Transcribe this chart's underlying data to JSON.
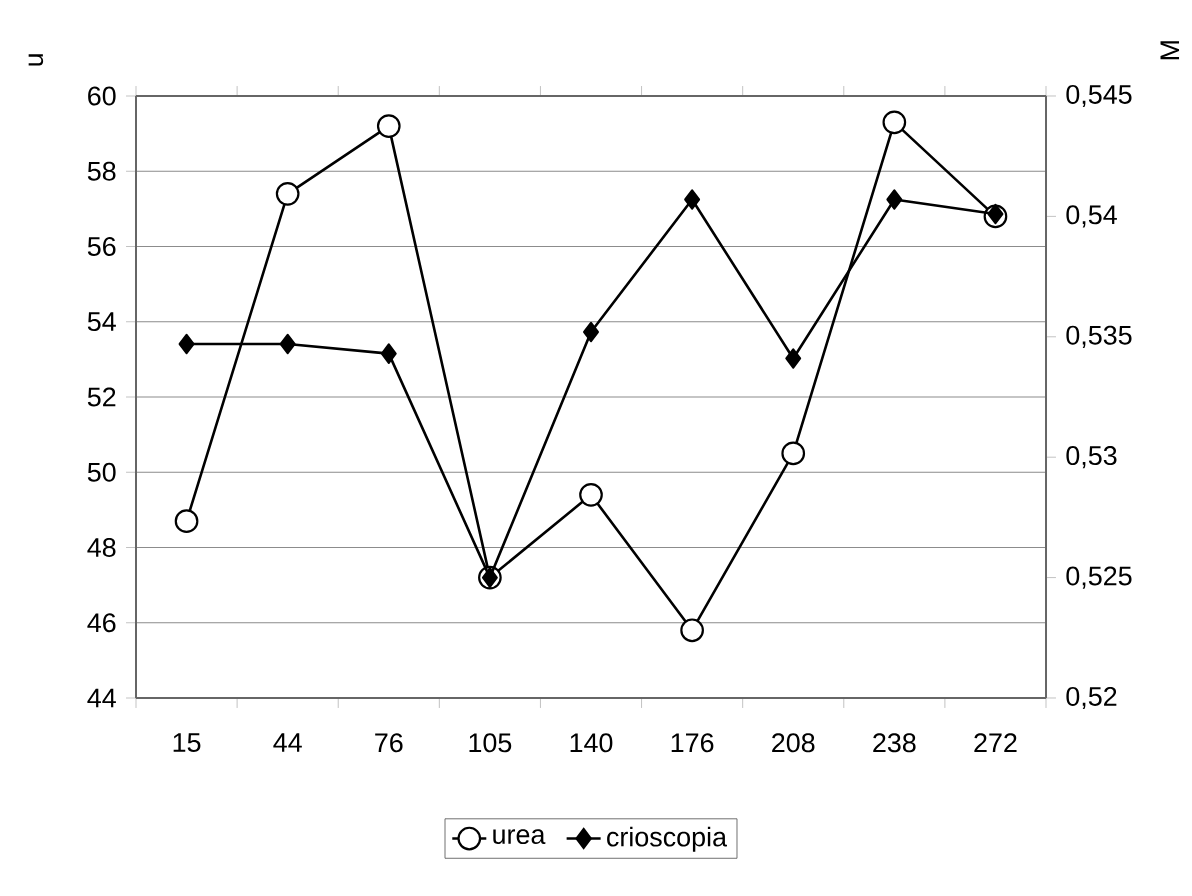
{
  "chart_data": {
    "type": "line",
    "ylabel": "u",
    "y2label": "M",
    "categories": [
      "15",
      "44",
      "76",
      "105",
      "140",
      "176",
      "208",
      "238",
      "272"
    ],
    "series": [
      {
        "name": "urea",
        "color": "#000000",
        "marker": "circle",
        "values": [
          48.7,
          57.4,
          59.2,
          47.2,
          49.4,
          45.8,
          50.5,
          59.3,
          56.8
        ]
      },
      {
        "name": "crioscopia",
        "color": "#000000",
        "marker": "diamond",
        "axis": "y2",
        "values": [
          0.5347,
          0.5347,
          0.5343,
          0.525,
          0.5352,
          0.5407,
          0.5341,
          0.5407,
          0.5401
        ]
      }
    ],
    "ylim": [
      44,
      60
    ],
    "yticks": [
      44,
      46,
      48,
      50,
      52,
      54,
      56,
      58,
      60
    ],
    "y2lim": [
      0.52,
      0.545
    ],
    "y2ticks": [
      {
        "value": 0.52,
        "label": "0,52"
      },
      {
        "value": 0.525,
        "label": "0,525"
      },
      {
        "value": 0.53,
        "label": "0,53"
      },
      {
        "value": 0.535,
        "label": "0,535"
      },
      {
        "value": 0.54,
        "label": "0,54"
      },
      {
        "value": 0.545,
        "label": "0,545"
      }
    ],
    "grid": "y",
    "legend": "bottom",
    "line_style": "solid"
  }
}
